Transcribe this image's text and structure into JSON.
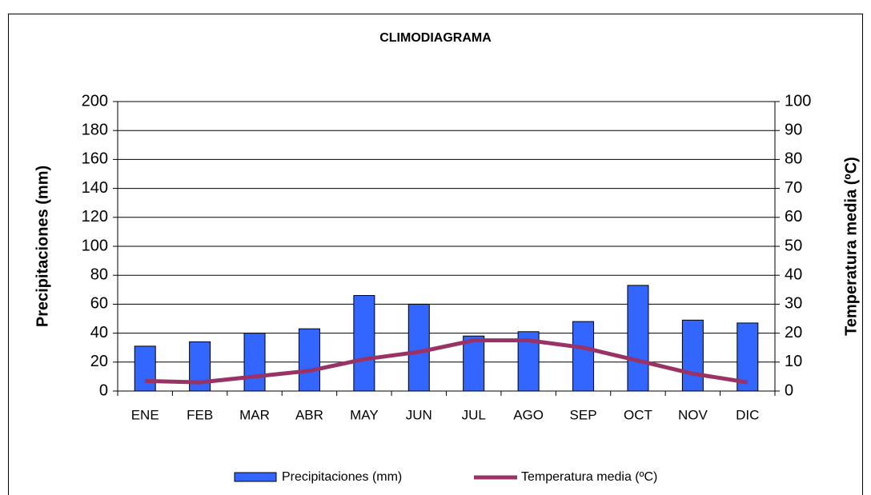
{
  "chart_data": {
    "type": "bar",
    "title": "CLIMODIAGRAMA",
    "y_label": "Precipitaciones (mm)",
    "y2_label": "Temperatura media (ºC)",
    "categories": [
      "ENE",
      "FEB",
      "MAR",
      "ABR",
      "MAY",
      "JUN",
      "JUL",
      "AGO",
      "SEP",
      "OCT",
      "NOV",
      "DIC"
    ],
    "series": [
      {
        "name": "Precipitaciones (mm)",
        "color": "#3366ff",
        "values": [
          31,
          34,
          40,
          43,
          66,
          60,
          38,
          41,
          48,
          73,
          49,
          47
        ]
      },
      {
        "name": "Temperatura media (ºC)",
        "color": "#993366",
        "type": "line",
        "axis": "y2",
        "values": [
          3.5,
          3,
          5,
          7,
          11,
          13.5,
          17.5,
          17.5,
          15,
          10.5,
          6,
          3
        ]
      }
    ],
    "ylim": [
      0,
      200
    ],
    "yticks": [
      0,
      20,
      40,
      60,
      80,
      100,
      120,
      140,
      160,
      180,
      200
    ],
    "y2lim": [
      0,
      100
    ],
    "y2ticks": [
      0,
      10,
      20,
      30,
      40,
      50,
      60,
      70,
      80,
      90,
      100
    ],
    "grid": true
  }
}
